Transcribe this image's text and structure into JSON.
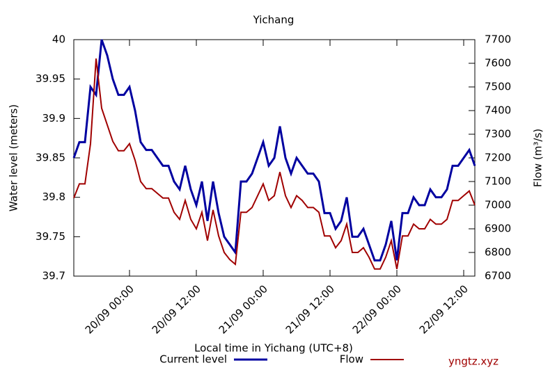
{
  "chart_data": {
    "type": "line",
    "title": "Yichang",
    "x_label": "Local time in Yichang (UTC+8)",
    "y_label": "Water level (meters)",
    "y2_label": "Flow (m³/s)",
    "watermark": "yngtz.xyz",
    "x": [
      "19/09 14:00",
      "19/09 15:00",
      "19/09 16:00",
      "19/09 17:00",
      "19/09 18:00",
      "19/09 19:00",
      "19/09 20:00",
      "19/09 21:00",
      "19/09 22:00",
      "19/09 23:00",
      "20/09 00:00",
      "20/09 01:00",
      "20/09 02:00",
      "20/09 03:00",
      "20/09 04:00",
      "20/09 05:00",
      "20/09 06:00",
      "20/09 07:00",
      "20/09 08:00",
      "20/09 09:00",
      "20/09 10:00",
      "20/09 11:00",
      "20/09 12:00",
      "20/09 13:00",
      "20/09 14:00",
      "20/09 15:00",
      "20/09 16:00",
      "20/09 17:00",
      "20/09 18:00",
      "20/09 19:00",
      "20/09 20:00",
      "20/09 21:00",
      "20/09 22:00",
      "20/09 23:00",
      "21/09 00:00",
      "21/09 01:00",
      "21/09 02:00",
      "21/09 03:00",
      "21/09 04:00",
      "21/09 05:00",
      "21/09 06:00",
      "21/09 07:00",
      "21/09 08:00",
      "21/09 09:00",
      "21/09 10:00",
      "21/09 11:00",
      "21/09 12:00",
      "21/09 13:00",
      "21/09 14:00",
      "21/09 15:00",
      "21/09 16:00",
      "21/09 17:00",
      "21/09 18:00",
      "21/09 19:00",
      "21/09 20:00",
      "21/09 21:00",
      "21/09 22:00",
      "21/09 23:00",
      "22/09 00:00",
      "22/09 01:00",
      "22/09 02:00",
      "22/09 03:00",
      "22/09 04:00",
      "22/09 05:00",
      "22/09 06:00",
      "22/09 07:00",
      "22/09 08:00",
      "22/09 09:00",
      "22/09 10:00",
      "22/09 11:00",
      "22/09 12:00",
      "22/09 13:00",
      "22/09 14:00"
    ],
    "series": [
      {
        "name": "Current level",
        "color": "#0000a0",
        "values": [
          39.85,
          39.87,
          39.87,
          39.94,
          39.93,
          40.0,
          39.98,
          39.95,
          39.93,
          39.93,
          39.94,
          39.91,
          39.87,
          39.86,
          39.86,
          39.85,
          39.84,
          39.84,
          39.82,
          39.81,
          39.84,
          39.81,
          39.79,
          39.82,
          39.77,
          39.82,
          39.78,
          39.75,
          39.74,
          39.73,
          39.82,
          39.82,
          39.83,
          39.85,
          39.87,
          39.84,
          39.85,
          39.89,
          39.85,
          39.83,
          39.85,
          39.84,
          39.83,
          39.83,
          39.82,
          39.78,
          39.78,
          39.76,
          39.77,
          39.8,
          39.75,
          39.75,
          39.76,
          39.74,
          39.72,
          39.72,
          39.74,
          39.77,
          39.72,
          39.78,
          39.78,
          39.8,
          39.79,
          39.79,
          39.81,
          39.8,
          39.8,
          39.81,
          39.84,
          39.84,
          39.85,
          39.86,
          39.84
        ]
      },
      {
        "name": "Flow",
        "color": "#a00000",
        "axis": "y2",
        "values": [
          7030,
          7090,
          7090,
          7260,
          7620,
          7410,
          7340,
          7270,
          7230,
          7230,
          7260,
          7190,
          7100,
          7070,
          7070,
          7050,
          7030,
          7030,
          6970,
          6940,
          7020,
          6940,
          6900,
          6970,
          6850,
          6980,
          6870,
          6800,
          6770,
          6750,
          6970,
          6970,
          6990,
          7040,
          7090,
          7020,
          7040,
          7140,
          7040,
          6990,
          7040,
          7020,
          6990,
          6990,
          6970,
          6870,
          6870,
          6820,
          6850,
          6920,
          6800,
          6800,
          6820,
          6780,
          6730,
          6730,
          6780,
          6850,
          6730,
          6870,
          6870,
          6920,
          6900,
          6900,
          6940,
          6920,
          6920,
          6940,
          7020,
          7020,
          7040,
          7060,
          7000
        ]
      }
    ],
    "xlim": [
      "19/09 14:00",
      "22/09 14:00"
    ],
    "xticks": [
      "20/09 00:00",
      "20/09 12:00",
      "21/09 00:00",
      "21/09 12:00",
      "22/09 00:00",
      "22/09 12:00"
    ],
    "ylim": [
      39.7,
      40
    ],
    "yticks": [
      39.7,
      39.75,
      39.8,
      39.85,
      39.9,
      39.95,
      40
    ],
    "y2lim": [
      6700,
      7700
    ],
    "y2ticks": [
      6700,
      6800,
      6900,
      7000,
      7100,
      7200,
      7300,
      7400,
      7500,
      7600,
      7700
    ]
  }
}
